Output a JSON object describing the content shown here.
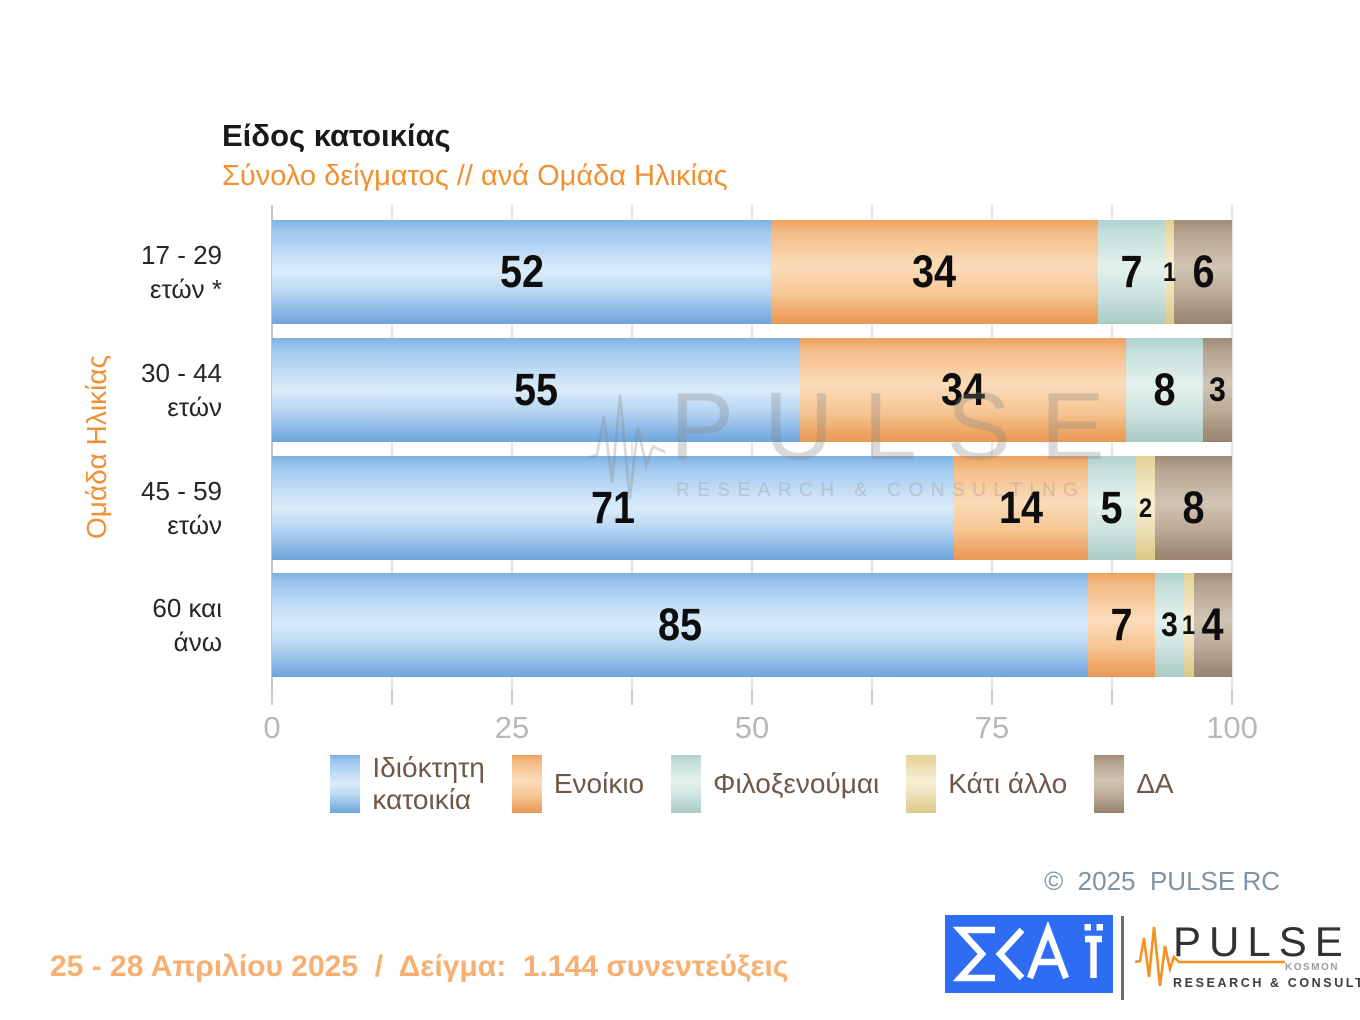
{
  "copyright": "©  2025  PULSE RC",
  "footer": {
    "note": "25 - 28 Απριλίου 2025  /  Δείγμα:  1.144 συνεντεύξεις"
  },
  "watermark": {
    "brand": "PULSE",
    "tagline": "RESEARCH & CONSULTING"
  },
  "logos": {
    "skai": {
      "text": "ΣΚΑΪ",
      "bg_color": "#2e6cf3"
    },
    "pulse": {
      "brand": "PULSE",
      "sub": "KOSMON",
      "tagline": "RESEARCH & CONSULTING",
      "accent_color": "#f59120"
    }
  },
  "legend": {
    "items": [
      {
        "lines": [
          "Ιδιόκτητη",
          "κατοικία"
        ]
      },
      {
        "lines": [
          "Ενοίκιο"
        ]
      },
      {
        "lines": [
          "Φιλοξενούμαι"
        ]
      },
      {
        "lines": [
          "Κάτι άλλο"
        ]
      },
      {
        "lines": [
          "ΔΑ"
        ]
      }
    ]
  },
  "chart_data": {
    "type": "bar",
    "orientation": "horizontal",
    "stacked": true,
    "title": "Είδος κατοικίας",
    "subtitle": "Σύνολο δείγματος // ανά Ομάδα Ηλικίας",
    "ylabel": "Ομάδα Ηλικίας",
    "xlim": [
      0,
      100
    ],
    "gridline_step": 12.5,
    "grid": true,
    "legend_position": "bottom",
    "x_tick_labels": [
      0,
      25,
      50,
      75,
      100
    ],
    "categories": [
      [
        "17 - 29",
        "ετών *"
      ],
      [
        "30 - 44",
        "ετών"
      ],
      [
        "45 - 59",
        "ετών"
      ],
      [
        "60 και",
        "άνω"
      ]
    ],
    "series": [
      {
        "name": "Ιδιόκτητη κατοικία",
        "color": "#8bbde9",
        "values": [
          52,
          55,
          71,
          85
        ]
      },
      {
        "name": "Ενοίκιο",
        "color": "#f2b479",
        "values": [
          34,
          34,
          14,
          7
        ]
      },
      {
        "name": "Φιλοξενούμαι",
        "color": "#c6dfda",
        "values": [
          7,
          8,
          5,
          3
        ]
      },
      {
        "name": "Κάτι άλλο",
        "color": "#efe3b3",
        "values": [
          1,
          0,
          2,
          1
        ]
      },
      {
        "name": "ΔΑ",
        "color": "#b7a694",
        "values": [
          6,
          3,
          8,
          4
        ]
      }
    ],
    "accent_text_color": "#ef9033"
  }
}
